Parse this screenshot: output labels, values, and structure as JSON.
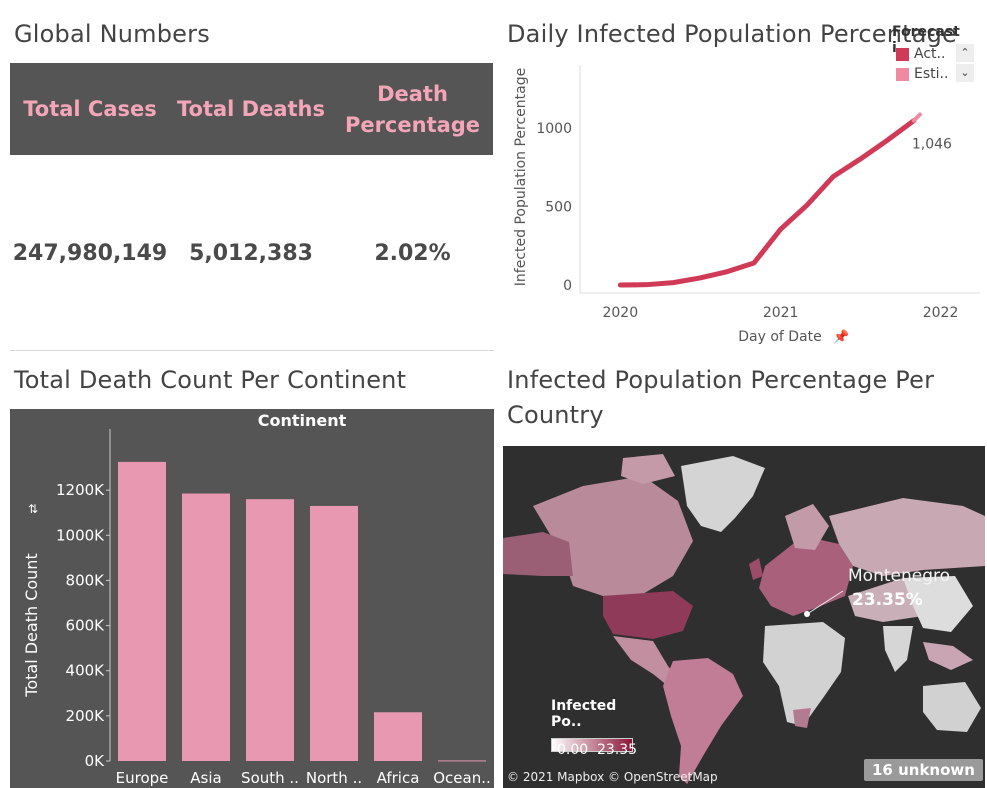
{
  "global_numbers": {
    "title": "Global Numbers",
    "headers": [
      "Total Cases",
      "Total Deaths",
      "Death",
      "Percentage"
    ],
    "values": [
      "247,980,149",
      "5,012,383",
      "2.02%"
    ],
    "header_bg": "#555555",
    "header_color": "#f4a6b8"
  },
  "line_chart": {
    "title": "Daily Infected Population Percentage",
    "legend_title": "Forecast i..",
    "legend_items": [
      "Act..",
      "Esti.."
    ],
    "legend_colors": [
      "#d03a57",
      "#f08aa0"
    ],
    "scroll_up": "⌃",
    "scroll_down": "⌄",
    "end_label": "1,046",
    "pin_icon": "pin-icon"
  },
  "bar_chart": {
    "title": "Total Death Count Per Continent",
    "header": "Continent",
    "panel_bg": "#555555",
    "bar_color": "#e899b1",
    "icon": "sort-icon"
  },
  "map": {
    "title_line1": "Infected Population Percentage Per",
    "title_line2": "Country",
    "annotation_name": "Montenegro",
    "annotation_value": "23.35%",
    "legend_title": "Infected Po..",
    "legend_min": "0.00",
    "legend_max": "23.35",
    "copyright": "© 2021 Mapbox © OpenStreetMap",
    "unknown_badge": "16 unknown",
    "scale_low_color": "#ffffff",
    "scale_high_color": "#8a1538"
  },
  "chart_data": [
    {
      "type": "line",
      "title": "Daily Infected Population Percentage",
      "xlabel": "Day of Date",
      "ylabel": "Infected Population Percentage",
      "x_ticks": [
        "2020",
        "2021",
        "2022"
      ],
      "y_ticks": [
        "0",
        "500",
        "1000"
      ],
      "ylim": [
        0,
        1400
      ],
      "series": [
        {
          "name": "Act..",
          "color": "#d03a57",
          "x": [
            "2020-01-01",
            "2020-03-01",
            "2020-05-01",
            "2020-07-01",
            "2020-09-01",
            "2020-11-01",
            "2021-01-01",
            "2021-03-01",
            "2021-05-01",
            "2021-07-01",
            "2021-09-01",
            "2021-11-01"
          ],
          "values": [
            0,
            2,
            15,
            45,
            85,
            140,
            355,
            505,
            690,
            800,
            920,
            1046
          ]
        },
        {
          "name": "Esti..",
          "color": "#f08aa0",
          "x": [
            "2021-11-01",
            "2021-11-15"
          ],
          "values": [
            1046,
            1085
          ]
        }
      ],
      "annotations": [
        "1,046"
      ],
      "grid": false
    },
    {
      "type": "bar",
      "title": "Total Death Count Per Continent",
      "xlabel": "Continent",
      "ylabel": "Total Death Count",
      "categories": [
        "Europe",
        "Asia",
        "South ..",
        "North ..",
        "Africa",
        "Ocean.."
      ],
      "values": [
        1325000,
        1185000,
        1160000,
        1130000,
        216000,
        2600
      ],
      "y_ticks": [
        "0K",
        "200K",
        "400K",
        "600K",
        "800K",
        "1000K",
        "1200K"
      ],
      "ylim": [
        0,
        1400000
      ],
      "grid": false
    }
  ]
}
